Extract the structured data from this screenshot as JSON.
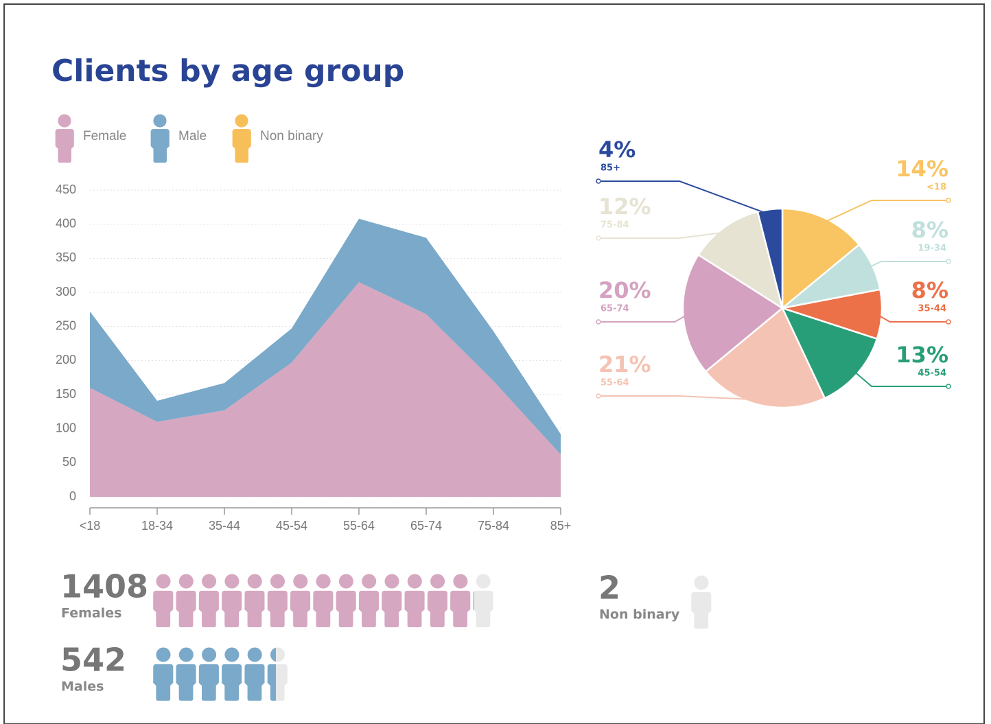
{
  "title": "Clients by age group",
  "legend_extra": {
    "name": "Non binary",
    "color": "#f7bf5a"
  },
  "chart_data": [
    {
      "type": "area",
      "stacked": true,
      "grid": true,
      "categories": [
        "<18",
        "18-34",
        "35-44",
        "45-54",
        "55-64",
        "65-74",
        "75-84",
        "85+"
      ],
      "series": [
        {
          "name": "Female",
          "color": "#d6a7c1",
          "values": [
            160,
            110,
            127,
            197,
            315,
            268,
            170,
            62
          ]
        },
        {
          "name": "Male",
          "color": "#7aa9c9",
          "values": [
            112,
            31,
            40,
            50,
            93,
            112,
            73,
            30
          ]
        }
      ],
      "ylim": [
        0,
        450
      ],
      "yticks": [
        0,
        50,
        100,
        150,
        200,
        250,
        300,
        350,
        400,
        450
      ]
    },
    {
      "type": "pie",
      "categories": [
        "<18",
        "19-34",
        "35-44",
        "45-54",
        "55-64",
        "65-74",
        "75-84",
        "85+"
      ],
      "values": [
        14,
        8,
        8,
        13,
        21,
        20,
        12,
        4
      ],
      "value_labels": [
        "14%",
        "8%",
        "8%",
        "13%",
        "21%",
        "20%",
        "12%",
        "4%"
      ],
      "colors": [
        "#f9c462",
        "#bfe0dc",
        "#ec7048",
        "#289e78",
        "#f4c3b3",
        "#d4a2c0",
        "#e6e3d3",
        "#2b4a9e"
      ]
    }
  ],
  "pictograph": {
    "unit": 100,
    "empty_color": "#e9e9e9",
    "items": [
      {
        "value": 1408,
        "label": "Females",
        "color": "#d6a7c1"
      },
      {
        "value": 542,
        "label": "Males",
        "color": "#7aa9c9"
      },
      {
        "value": 2,
        "label": "Non binary",
        "color": "#f7bf5a"
      }
    ]
  }
}
